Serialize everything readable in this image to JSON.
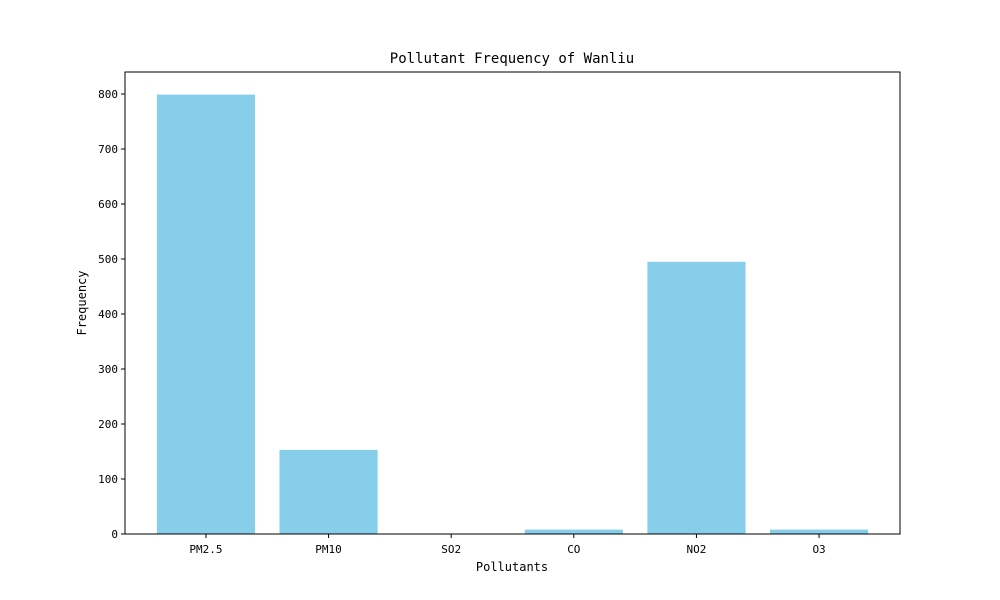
{
  "chart_data": {
    "type": "bar",
    "title": "Pollutant Frequency of Wanliu",
    "xlabel": "Pollutants",
    "ylabel": "Frequency",
    "categories": [
      "PM2.5",
      "PM10",
      "SO2",
      "CO",
      "NO2",
      "O3"
    ],
    "values": [
      799,
      153,
      0,
      8,
      495,
      8
    ],
    "ylim": [
      0,
      840
    ],
    "yticks": [
      0,
      100,
      200,
      300,
      400,
      500,
      600,
      700,
      800
    ],
    "grid": false,
    "bar_color": "#87CEEB"
  }
}
